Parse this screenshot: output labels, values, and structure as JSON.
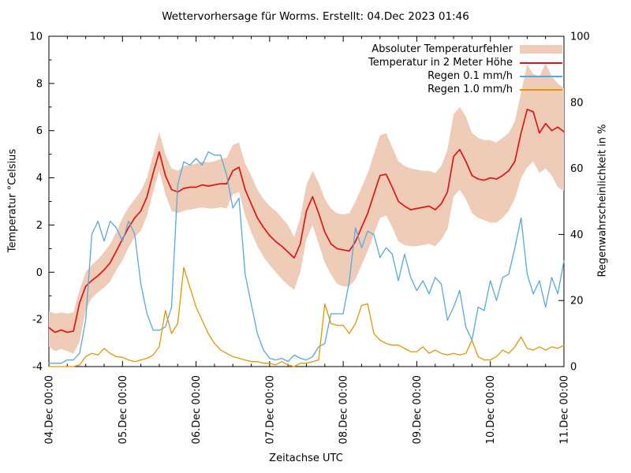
{
  "title": "Wettervorhersage für Worms. Erstellt: 04.Dec 2023 01:46",
  "colors": {
    "band": "#efccb8",
    "temperature": "#e41313",
    "rain01": "#56a9db",
    "rain10": "#e69500",
    "axis": "#000000"
  },
  "chart_data": {
    "type": "line",
    "title": "Wettervorhersage für Worms. Erstellt: 04.Dec 2023 01:46",
    "xlabel": "Zeitachse UTC",
    "ylabel_left": "Temperatur °Celsius",
    "ylabel_right": "Regenwahrscheinlichkeit in %",
    "ylim_left": [
      -4,
      10
    ],
    "ylim_right": [
      0,
      100
    ],
    "y_left_tick_labels": [
      "-4",
      "-2",
      "0",
      "2",
      "4",
      "6",
      "8",
      "10"
    ],
    "y_right_tick_labels": [
      "0",
      "20",
      "40",
      "60",
      "80",
      "100"
    ],
    "x_tick_labels": [
      "04.Dec 00:00",
      "05.Dec 00:00",
      "06.Dec 00:00",
      "07.Dec 00:00",
      "08.Dec 00:00",
      "09.Dec 00:00",
      "10.Dec 00:00",
      "11.Dec 00:00"
    ],
    "x_minor_ticks_per_day": 3,
    "x_step_hours": 2,
    "x_range_hours": [
      0,
      168
    ],
    "legend_position": "top-right",
    "grid": false,
    "series": [
      {
        "name": "Absoluter Temperaturfehler",
        "type": "band",
        "axis": "left",
        "upper": [
          -1.65,
          -1.75,
          -1.7,
          -1.75,
          -1.7,
          -0.75,
          0.0,
          0.3,
          0.55,
          0.85,
          1.2,
          1.7,
          2.3,
          2.75,
          3.1,
          3.45,
          4.0,
          5.0,
          5.95,
          5.0,
          4.4,
          4.3,
          4.5,
          4.55,
          4.6,
          4.7,
          4.65,
          4.7,
          4.8,
          4.85,
          5.4,
          5.5,
          4.6,
          4.1,
          3.5,
          3.1,
          2.8,
          2.6,
          2.3,
          2.0,
          1.5,
          2.3,
          3.7,
          4.3,
          3.8,
          3.1,
          2.7,
          2.5,
          2.45,
          2.5,
          3.0,
          3.6,
          4.2,
          5.0,
          5.8,
          5.9,
          5.3,
          4.7,
          4.5,
          4.4,
          4.35,
          4.3,
          4.3,
          4.2,
          4.5,
          5.2,
          6.7,
          7.0,
          6.6,
          5.9,
          5.7,
          5.6,
          5.6,
          5.5,
          5.7,
          5.9,
          6.4,
          7.6,
          8.8,
          8.4,
          8.3,
          8.85,
          8.3,
          8.0,
          7.8
        ],
        "lower": [
          -3.15,
          -3.35,
          -3.25,
          -3.35,
          -3.45,
          -2.95,
          -1.6,
          -1.1,
          -0.85,
          -0.65,
          -0.4,
          0.1,
          0.5,
          1.05,
          1.5,
          1.75,
          2.4,
          3.4,
          4.3,
          3.3,
          2.6,
          2.5,
          2.6,
          2.65,
          2.7,
          2.75,
          2.7,
          2.7,
          2.75,
          2.7,
          3.3,
          3.4,
          2.4,
          1.7,
          1.1,
          0.65,
          0.3,
          0.0,
          -0.3,
          -0.55,
          -0.75,
          0.0,
          1.4,
          2.0,
          1.2,
          0.4,
          -0.1,
          -0.5,
          -0.6,
          -0.6,
          -0.3,
          0.3,
          0.9,
          1.6,
          2.3,
          2.4,
          1.9,
          1.3,
          1.15,
          1.1,
          1.1,
          1.15,
          1.2,
          1.1,
          1.4,
          1.8,
          3.2,
          3.5,
          3.1,
          2.5,
          2.3,
          2.2,
          2.1,
          2.1,
          2.3,
          2.6,
          3.1,
          4.0,
          4.45,
          4.7,
          4.2,
          4.4,
          4.1,
          3.6,
          3.45
        ]
      },
      {
        "name": "Temperatur in 2 Meter Höhe",
        "type": "line",
        "axis": "left",
        "values": [
          -2.35,
          -2.55,
          -2.45,
          -2.55,
          -2.5,
          -1.3,
          -0.6,
          -0.35,
          -0.15,
          0.1,
          0.4,
          0.9,
          1.4,
          1.9,
          2.3,
          2.6,
          3.2,
          4.2,
          5.1,
          4.1,
          3.5,
          3.4,
          3.55,
          3.6,
          3.6,
          3.7,
          3.65,
          3.7,
          3.75,
          3.75,
          4.3,
          4.45,
          3.5,
          2.9,
          2.3,
          1.9,
          1.55,
          1.3,
          1.1,
          0.85,
          0.6,
          1.2,
          2.6,
          3.2,
          2.5,
          1.7,
          1.2,
          1.0,
          0.95,
          0.9,
          1.3,
          1.9,
          2.5,
          3.3,
          4.1,
          4.15,
          3.6,
          3.0,
          2.8,
          2.65,
          2.7,
          2.75,
          2.8,
          2.65,
          2.9,
          3.4,
          4.9,
          5.2,
          4.7,
          4.1,
          3.95,
          3.9,
          4.0,
          3.95,
          4.1,
          4.3,
          4.7,
          5.9,
          6.9,
          6.8,
          5.9,
          6.3,
          6.0,
          6.15,
          5.95
        ]
      },
      {
        "name": "Regen 0.1 mm/h",
        "type": "line",
        "axis": "right",
        "values": [
          1,
          1,
          1,
          2,
          2,
          4,
          14,
          40,
          44,
          38,
          44,
          42,
          38,
          44,
          40,
          25,
          16,
          11,
          11,
          12,
          18,
          55,
          62,
          61,
          63,
          61,
          65,
          64,
          64,
          58,
          48,
          51,
          28,
          19,
          10,
          5,
          2.5,
          2,
          2.5,
          1.5,
          3.5,
          2.5,
          2,
          3,
          6,
          7,
          16,
          16,
          16,
          26,
          42,
          36,
          41,
          40,
          33,
          36,
          34,
          26,
          34,
          27,
          23,
          26,
          22,
          27,
          25,
          14,
          18,
          23,
          12,
          8,
          18,
          17,
          26,
          20,
          27,
          28,
          36,
          45,
          28,
          22,
          26,
          18,
          27,
          22,
          32
        ]
      },
      {
        "name": "Regen 1.0 mm/h",
        "type": "line",
        "axis": "right",
        "values": [
          0,
          0,
          0,
          0,
          0,
          0.5,
          3,
          4,
          3.5,
          5.5,
          4,
          3,
          2.8,
          2,
          1.5,
          2,
          2.5,
          3.5,
          6,
          17,
          10,
          13,
          30,
          24,
          18,
          14,
          10,
          7,
          5,
          4,
          3,
          2.5,
          2,
          1.5,
          1.5,
          1,
          1,
          0.5,
          1.5,
          0.5,
          0,
          1,
          1,
          1.5,
          2,
          19,
          13,
          12.5,
          12.5,
          10,
          13,
          18.5,
          19,
          10,
          8,
          7,
          6.5,
          6.5,
          5.5,
          4.5,
          4.5,
          6,
          4,
          5,
          4,
          3.5,
          4,
          3.5,
          4,
          8,
          3,
          2,
          2,
          3,
          5,
          4,
          6,
          9,
          5.5,
          5,
          6,
          5,
          6,
          5.5,
          6.5
        ]
      }
    ]
  }
}
